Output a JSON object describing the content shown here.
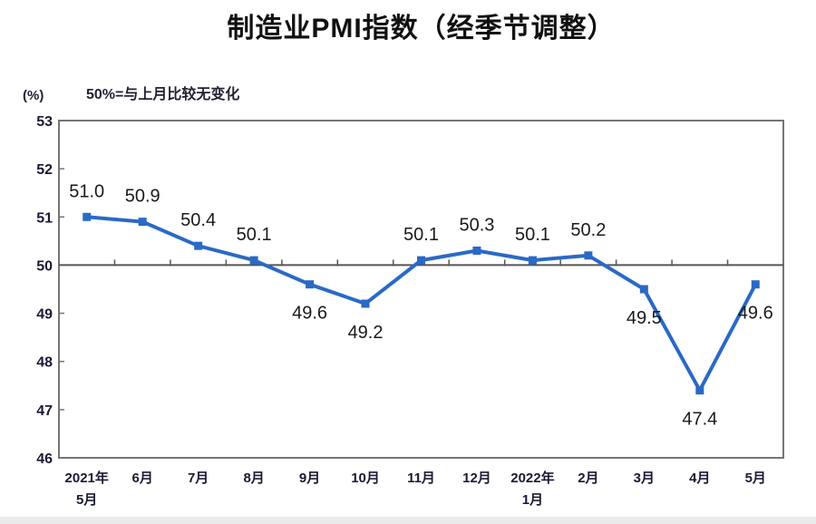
{
  "page": {
    "background": "#ffffff",
    "bottom_bar_color": "#eaeaea"
  },
  "header": {
    "title": "制造业PMI指数（经季节调整）",
    "note": "50%=与上月比较无变化",
    "unit_label": "(%)"
  },
  "chart_data": {
    "type": "line",
    "title": "制造业PMI指数（经季节调整）",
    "subtitle": "50%=与上月比较无变化",
    "ylabel": "(%)",
    "categories": [
      "2021年\n5月",
      "6月",
      "7月",
      "8月",
      "9月",
      "10月",
      "11月",
      "12月",
      "2022年\n1月",
      "2月",
      "3月",
      "4月",
      "5月"
    ],
    "values": [
      51.0,
      50.9,
      50.4,
      50.1,
      49.6,
      49.2,
      50.1,
      50.3,
      50.1,
      50.2,
      49.5,
      47.4,
      49.6
    ],
    "label_side": [
      "above",
      "above",
      "above",
      "above",
      "below",
      "below",
      "above",
      "above",
      "above",
      "above",
      "below",
      "below",
      "below"
    ],
    "ylim": [
      46,
      53
    ],
    "ytick_step": 1,
    "yticks": [
      46,
      47,
      48,
      49,
      50,
      51,
      52,
      53
    ],
    "reference_line": 50,
    "grid": false,
    "legend": "none",
    "marker": "square",
    "line_color": "#2a69c6",
    "axis_color": "#757575",
    "reference_line_color": "#555555",
    "tick_label_color": "#1a1a33",
    "data_label_color": "#1a1a1a"
  }
}
